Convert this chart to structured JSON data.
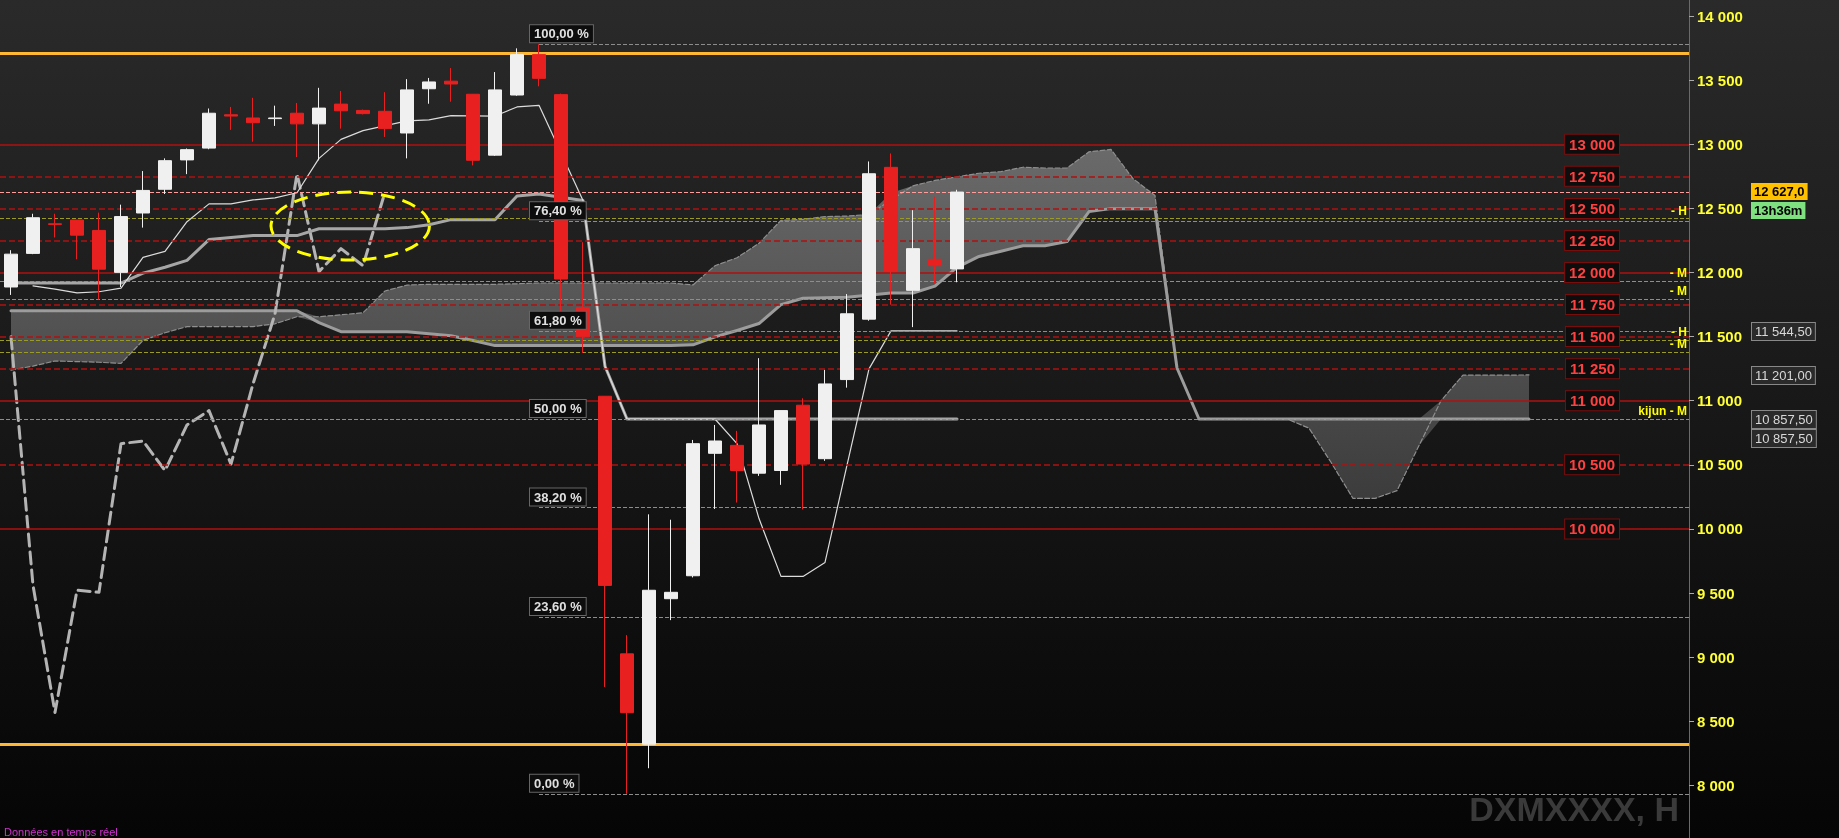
{
  "chart_data": {
    "type": "candlestick",
    "categories": [
      null,
      null,
      null,
      null,
      null,
      null,
      null,
      null,
      null,
      null,
      null,
      null,
      null,
      null,
      null,
      null,
      null,
      null,
      null,
      null,
      null,
      null,
      null,
      null,
      null,
      null,
      null,
      null,
      null,
      null,
      null,
      null,
      null,
      null,
      null,
      null,
      null,
      null,
      null,
      null,
      null,
      null,
      null,
      null,
      null,
      null,
      null,
      null,
      null,
      null,
      null,
      null,
      null,
      null,
      null,
      null,
      null,
      null,
      null,
      null,
      null,
      null,
      null,
      null,
      null,
      null,
      null,
      null,
      null,
      null
    ],
    "ohlc": [
      [
        11887,
        12174,
        11825,
        12143
      ],
      [
        12149,
        12458,
        12143,
        12427
      ],
      [
        12380,
        12458,
        12273,
        12375
      ],
      [
        12409,
        12409,
        12103,
        12291
      ],
      [
        12328,
        12467,
        11788,
        12026
      ],
      [
        12001,
        12529,
        11887,
        12436
      ],
      [
        12464,
        12791,
        12350,
        12640
      ],
      [
        12649,
        12890,
        12612,
        12872
      ],
      [
        12878,
        12967,
        12767,
        12958
      ],
      [
        12970,
        13279,
        12961,
        13242
      ],
      [
        13230,
        13291,
        13112,
        13220
      ],
      [
        13205,
        13362,
        13020,
        13168
      ],
      [
        13200,
        13301,
        13143,
        13205
      ],
      [
        13242,
        13322,
        12900,
        13159
      ],
      [
        13159,
        13440,
        12875,
        13282
      ],
      [
        13313,
        13415,
        13122,
        13261
      ],
      [
        13264,
        13270,
        13233,
        13239
      ],
      [
        13257,
        13406,
        13057,
        13122
      ],
      [
        13088,
        13508,
        12890,
        13424
      ],
      [
        13433,
        13517,
        13316,
        13486
      ],
      [
        13492,
        13594,
        13332,
        13470
      ],
      [
        13390,
        13390,
        12835,
        12875
      ],
      [
        12915,
        13563,
        12909,
        13424
      ],
      [
        13384,
        13748,
        13378,
        13699
      ],
      [
        13699,
        13780,
        13452,
        13514
      ],
      [
        13387,
        13395,
        11686,
        11949
      ],
      [
        11728,
        12236,
        11373,
        11498
      ],
      [
        11035,
        11035,
        8768,
        9560
      ],
      [
        9026,
        9172,
        7935,
        8568
      ],
      [
        8322,
        10114,
        8134,
        9522
      ],
      [
        9456,
        10072,
        9289,
        9506
      ],
      [
        9635,
        10694,
        9622,
        10665
      ],
      [
        10590,
        10811,
        10156,
        10686
      ],
      [
        10652,
        10765,
        10206,
        10456
      ],
      [
        10435,
        11332,
        10414,
        10811
      ],
      [
        10456,
        10923,
        10344,
        10923
      ],
      [
        10965,
        11019,
        10152,
        10506
      ],
      [
        10548,
        11240,
        10531,
        11131
      ],
      [
        11165,
        11832,
        11102,
        11678
      ],
      [
        11636,
        12866,
        11624,
        12770
      ],
      [
        12820,
        12928,
        11749,
        12007
      ],
      [
        11861,
        12486,
        11574,
        12186
      ],
      [
        12103,
        12591,
        11915,
        12053
      ],
      [
        12028,
        12645,
        11924,
        12627
      ],
      null,
      null,
      null,
      null,
      null,
      null,
      null,
      null,
      null,
      null,
      null,
      null,
      null,
      null,
      null,
      null,
      null,
      null,
      null,
      null,
      null,
      null,
      null,
      null,
      null,
      null
    ],
    "colors": [
      "#f0f0f0",
      "#f0f0f0",
      "#e82020",
      "#e82020",
      "#e82020",
      "#f0f0f0",
      "#f0f0f0",
      "#f0f0f0",
      "#f0f0f0",
      "#f0f0f0",
      "#e82020",
      "#e82020",
      "#f0f0f0",
      "#e82020",
      "#f0f0f0",
      "#e82020",
      "#e82020",
      "#e82020",
      "#f0f0f0",
      "#f0f0f0",
      "#e82020",
      "#e82020",
      "#f0f0f0",
      "#f0f0f0",
      "#e82020",
      "#e82020",
      "#e82020",
      "#e82020",
      "#e82020",
      "#f0f0f0",
      "#f0f0f0",
      "#f0f0f0",
      "#f0f0f0",
      "#e82020",
      "#f0f0f0",
      "#f0f0f0",
      "#e82020",
      "#f0f0f0",
      "#f0f0f0",
      "#f0f0f0",
      "#e82020",
      "#f0f0f0",
      "#e82020",
      "#f0f0f0",
      null,
      null,
      null,
      null,
      null,
      null,
      null,
      null,
      null,
      null,
      null,
      null,
      null,
      null,
      null,
      null,
      null,
      null,
      null,
      null,
      null,
      null,
      null,
      null,
      null,
      null
    ],
    "series": [
      {
        "type": "line",
        "color": "#8f8f8f",
        "line_style": "dashed",
        "values": [
          11239,
          11270,
          11310,
          11305,
          11300,
          11291,
          11470,
          11530,
          11578,
          11578,
          11578,
          11578,
          11600,
          11655,
          11655,
          11670,
          11686,
          11856,
          11902,
          11908,
          11908,
          11908,
          11908,
          11912,
          11918,
          11918,
          11918,
          11918,
          11918,
          11918,
          11918,
          11903,
          12053,
          12115,
          12228,
          12407,
          12415,
          12436,
          12440,
          12453,
          null,
          12676,
          12718,
          12746,
          12774,
          12787,
          12821,
          12815,
          12815,
          12941,
          12960,
          12732,
          12600,
          11255,
          10857.5,
          10857.5,
          10857.5,
          10857.5,
          10857.5,
          10786,
          10520,
          10238,
          10238,
          10299,
          10650,
          11000,
          11200,
          11200,
          11200,
          11201
        ],
        "lower": [
          11702,
          11702,
          11702,
          11702,
          11702,
          11702,
          11702,
          11702,
          11702,
          11702,
          11702,
          11702,
          11702,
          11702,
          11609,
          11538,
          11538,
          11538,
          11538,
          11523,
          11507,
          11470,
          11430,
          11430,
          11430,
          11430,
          11430,
          11430,
          11430,
          11430,
          11430,
          11436,
          11498,
          11548,
          11602,
          11749,
          11799,
          11803,
          11807,
          11811,
          11840,
          11840,
          11894,
          12040,
          12125,
          12166,
          12208,
          12208,
          12241,
          12475,
          12498,
          12498,
          12498,
          11255,
          10857.5,
          10857.5,
          10857.5,
          10857.5,
          10857.5,
          10857.5,
          10857.5,
          10857.5,
          10857.5,
          10857.5,
          10857.5,
          10857.5,
          10857.5,
          10857.5,
          10857.5,
          10857.5
        ],
        "upper": [
          11239,
          11270,
          11310,
          11305,
          11300,
          11291,
          11470,
          11530,
          11578,
          11578,
          11578,
          11578,
          11600,
          11655,
          11655,
          11670,
          11686,
          11856,
          11902,
          11908,
          11908,
          11908,
          11908,
          11912,
          11918,
          11918,
          11918,
          11918,
          11918,
          11918,
          11918,
          11903,
          12053,
          12115,
          12228,
          12407,
          12415,
          12436,
          12440,
          12453,
          12620,
          12676,
          12718,
          12746,
          12774,
          12787,
          12821,
          12815,
          12815,
          12941,
          12960,
          12732,
          12600,
          11255,
          10857.5,
          10857.5,
          10857.5,
          10857.5,
          10857.5,
          10786,
          10520,
          10238,
          10238,
          10299,
          10650,
          11000,
          11200,
          11200,
          11200,
          11201
        ]
      },
      {
        "type": "line",
        "color": "#9c9c9c",
        "line_style": "solid",
        "values": [
          11702,
          11702,
          11702,
          11702,
          11702,
          11702,
          11702,
          11702,
          11702,
          11702,
          11702,
          11702,
          11702,
          11702,
          11609,
          11538,
          11538,
          11538,
          11538,
          11523,
          11507,
          11470,
          11430,
          11430,
          11430,
          11430,
          11430,
          11430,
          11430,
          11430,
          11430,
          11436,
          11498,
          11548,
          11602,
          11749,
          11799,
          11803,
          11807,
          null,
          11840,
          11840,
          11894,
          12040,
          12125,
          12166,
          12208,
          12208,
          12241,
          12475,
          12498,
          12498,
          12498,
          11255,
          10857.5,
          10857.5,
          10857.5,
          10857.5,
          10857.5,
          10857.5,
          10857.5,
          10857.5,
          10857.5,
          10857.5,
          10857.5,
          10857.5,
          10857.5,
          10857.5,
          10857.5,
          10857.5
        ]
      },
      {
        "type": "line",
        "color": "#b4b4b4",
        "line_style": "dashed",
        "values": [
          11498,
          9560,
          8568,
          9522,
          9506,
          10665,
          10686,
          10456,
          10811,
          10923,
          10506,
          11131,
          11678,
          12770,
          12007,
          12186,
          12053,
          12627,
          null,
          null,
          null,
          null,
          null,
          null,
          null,
          null,
          null,
          null,
          null,
          null,
          null,
          null,
          null,
          null,
          null,
          null,
          null,
          null,
          null,
          null,
          null,
          null,
          null,
          null,
          null,
          null,
          null,
          null,
          null,
          null,
          null,
          null,
          null,
          null,
          null,
          null,
          null,
          null,
          null,
          null,
          null,
          null,
          null,
          null,
          null,
          null,
          null,
          null,
          null,
          null
        ]
      },
      {
        "type": "line",
        "color": "#a6a6a6",
        "line_style": "solid",
        "values": [
          11918,
          11918,
          11918,
          11918,
          11918,
          11918,
          11995,
          12041,
          12094,
          12257,
          12273,
          12288,
          12288,
          12288,
          12341,
          null,
          12341,
          12341,
          12350,
          12372,
          12412,
          12412,
          12412,
          12597,
          12612,
          null,
          12561,
          11269,
          10857.5,
          10857.5,
          10857.5,
          10857.5,
          10857.5,
          10857.5,
          10857.5,
          10857.5,
          null,
          10857.5,
          10857.5,
          10857.5,
          10857.5,
          10857.5,
          10857.5,
          10857.5,
          null,
          null,
          null,
          null,
          null,
          null,
          null,
          null,
          null,
          null,
          null,
          null,
          null,
          null,
          null,
          null,
          null,
          null,
          null,
          null,
          null,
          null,
          null,
          null,
          null,
          null
        ]
      },
      {
        "type": "line",
        "color": "#dcdcdc",
        "line_style": "solid",
        "values": [
          null,
          11896,
          11871,
          11841,
          11850,
          11878,
          12118,
          12165,
          12396,
          12535,
          12535,
          12566,
          12582,
          12622,
          12890,
          13038,
          13106,
          null,
          13183,
          13190,
          13224,
          null,
          13220,
          13291,
          13304,
          null,
          12561,
          11269,
          10857.5,
          10857.5,
          10857.5,
          10857.5,
          10857.5,
          10665,
          10081,
          9630,
          9630,
          9739,
          10498,
          11248,
          11544.5,
          11544.5,
          11544.5,
          11544.5,
          null,
          null,
          null,
          null,
          null,
          null,
          null,
          null,
          null,
          null,
          null,
          null,
          null,
          null,
          null,
          null,
          null,
          null,
          null,
          null,
          null,
          null,
          null,
          null,
          null,
          null
        ]
      }
    ],
    "ylim": [
      7590,
      14125
    ],
    "yticks": [
      {
        "value": 8000,
        "label": "8 000"
      },
      {
        "value": 8500,
        "label": "8 500"
      },
      {
        "value": 9000,
        "label": "9 000"
      },
      {
        "value": 9500,
        "label": "9 500"
      },
      {
        "value": 10000,
        "label": "10 000"
      },
      {
        "value": 10500,
        "label": "10 500"
      },
      {
        "value": 11000,
        "label": "11 000"
      },
      {
        "value": 11500,
        "label": "11 500"
      },
      {
        "value": 12000,
        "label": "12 000"
      },
      {
        "value": 12500,
        "label": "12 500"
      },
      {
        "value": 13000,
        "label": "13 000"
      },
      {
        "value": 13500,
        "label": "13 500"
      },
      {
        "value": 14000,
        "label": "14 000"
      }
    ],
    "tick_labels": "y",
    "ref_lines": [
      {
        "axis": "y",
        "value": 13710,
        "label": null,
        "color": "#ffb833",
        "line_style": "solid"
      },
      {
        "axis": "y",
        "value": 8320,
        "label": null,
        "color": "#ffb833",
        "line_style": "solid"
      },
      {
        "axis": "y",
        "value": 13000,
        "label": "13 000",
        "color": "#b01010",
        "line_style": "solid"
      },
      {
        "axis": "y",
        "value": 12750,
        "label": "12 750",
        "color": "#b01010",
        "line_style": "dashed"
      },
      {
        "axis": "y",
        "value": 12500,
        "label": "12 500",
        "color": "#b01010",
        "line_style": "dashed"
      },
      {
        "axis": "y",
        "value": 12250,
        "label": "12 250",
        "color": "#b01010",
        "line_style": "dashed"
      },
      {
        "axis": "y",
        "value": 12000,
        "label": "12 000",
        "color": "#b01010",
        "line_style": "solid"
      },
      {
        "axis": "y",
        "value": 11750,
        "label": "11 750",
        "color": "#b01010",
        "line_style": "dashed"
      },
      {
        "axis": "y",
        "value": 11500,
        "label": "11 500",
        "color": "#b01010",
        "line_style": "dashed"
      },
      {
        "axis": "y",
        "value": 11250,
        "label": "11 250",
        "color": "#b01010",
        "line_style": "dashed"
      },
      {
        "axis": "y",
        "value": 11000,
        "label": "11 000",
        "color": "#b01010",
        "line_style": "solid"
      },
      {
        "axis": "y",
        "value": 10500,
        "label": "10 500",
        "color": "#b01010",
        "line_style": "dashed"
      },
      {
        "axis": "y",
        "value": 10000,
        "label": "10 000",
        "color": "#b01010",
        "line_style": "solid"
      },
      {
        "axis": "y",
        "value": 13780,
        "label": null,
        "color": "#8c8c8c",
        "line_style": "dashed"
      },
      {
        "axis": "y",
        "value": 12400,
        "label": null,
        "color": "#8c8c8c",
        "line_style": "dashed"
      },
      {
        "axis": "y",
        "value": 11545,
        "label": null,
        "color": "#8c8c8c",
        "line_style": "dashed"
      },
      {
        "axis": "y",
        "value": 10167,
        "label": null,
        "color": "#8c8c8c",
        "line_style": "dashed"
      },
      {
        "axis": "y",
        "value": 9313,
        "label": null,
        "color": "#8c8c8c",
        "line_style": "dashed"
      },
      {
        "axis": "y",
        "value": 7935,
        "label": null,
        "color": "#8c8c8c",
        "line_style": "dashed"
      },
      {
        "axis": "y",
        "value": 12420,
        "label": "- H",
        "color": "#9a9a28",
        "line_style": "dashed"
      },
      {
        "axis": "y",
        "value": 11930,
        "label": "- M",
        "color": "#9a9a28",
        "line_style": "dashed"
      },
      {
        "axis": "y",
        "value": 11790,
        "label": "- M",
        "color": "#9a9a28",
        "line_style": "dashed"
      },
      {
        "axis": "y",
        "value": 11470,
        "label": "- H",
        "color": "#9a9a28",
        "line_style": "dashed"
      },
      {
        "axis": "y",
        "value": 11380,
        "label": "- M",
        "color": "#9a9a28",
        "line_style": "dashed"
      },
      {
        "axis": "y",
        "value": 10857.5,
        "label": "kijun - M",
        "color": "#9a9a28",
        "line_style": "dashed"
      },
      {
        "axis": "y",
        "value": 12627,
        "label": null,
        "color": "#ff9c9c",
        "line_style": "dashed"
      }
    ],
    "annotations": [
      "13h36m",
      "DXMXXXX, H",
      "Données en temps réel",
      {
        "text": "100,00 %",
        "y": 13780
      },
      {
        "text": "76,40 %",
        "y": 12400
      },
      {
        "text": "61,80 %",
        "y": 11545
      },
      {
        "text": "50,00 %",
        "y": 10857.5
      },
      {
        "text": "38,20 %",
        "y": 10167
      },
      {
        "text": "23,60 %",
        "y": 9313
      },
      {
        "text": "0,00 %",
        "y": 7935
      },
      "12 627,0",
      "11 544,50",
      "11 201,00",
      "10 857,50",
      "10 857,50"
    ]
  }
}
